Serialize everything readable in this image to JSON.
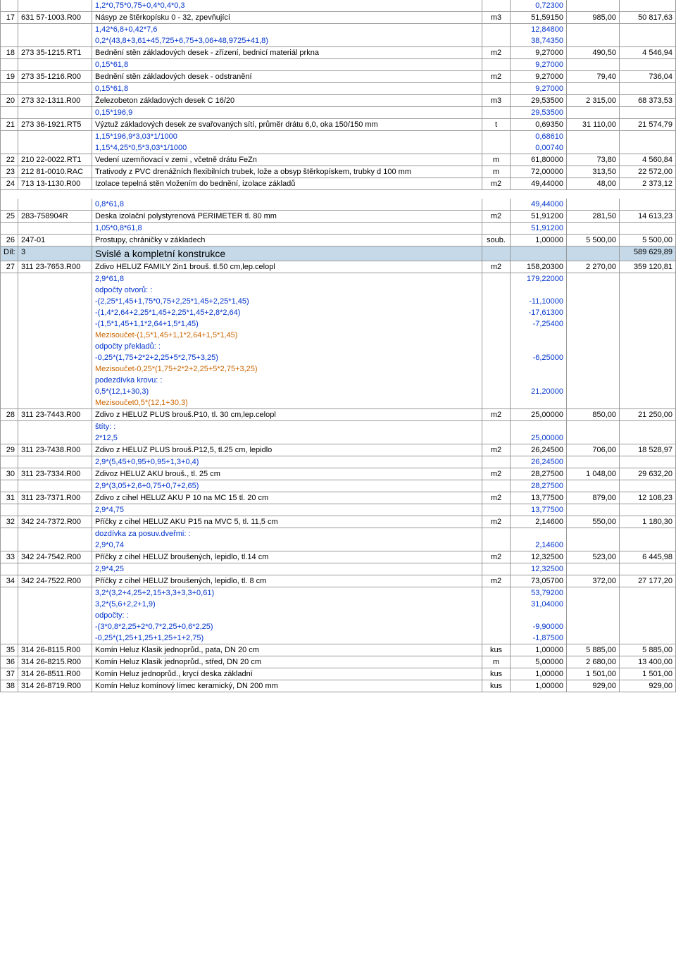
{
  "colors": {
    "blue": "#0033cc",
    "orange": "#cc6600",
    "section_bg": "#c5d9e8",
    "border": "#999999"
  },
  "font": {
    "family": "Arial",
    "size": 11
  },
  "rows": [
    {
      "type": "calc",
      "desc": "1,2*0,75*0,75+0,4*0,4*0,3",
      "qty": "0,72300"
    },
    {
      "type": "main",
      "n": "17",
      "code": "631 57-1003.R00",
      "desc": "Násyp ze štěrkopísku 0 - 32,  zpevňující",
      "unit": "m3",
      "qty": "51,59150",
      "price": "985,00",
      "total": "50 817,63"
    },
    {
      "type": "calc",
      "desc": "1,42*6,8+0,42*7,6",
      "qty": "12,84800"
    },
    {
      "type": "calc",
      "desc": "0,2*(43,8+3,61+45,725+6,75+3,06+48,9725+41,8)",
      "qty": "38,74350"
    },
    {
      "type": "main",
      "n": "18",
      "code": "273 35-1215.RT1",
      "desc": "Bednění stěn základových desek - zřízení, bednicí materiál prkna",
      "unit": "m2",
      "qty": "9,27000",
      "price": "490,50",
      "total": "4 546,94"
    },
    {
      "type": "calc",
      "desc": "0,15*61,8",
      "qty": "9,27000"
    },
    {
      "type": "main",
      "n": "19",
      "code": "273 35-1216.R00",
      "desc": "Bednění stěn základových desek - odstranění",
      "unit": "m2",
      "qty": "9,27000",
      "price": "79,40",
      "total": "736,04"
    },
    {
      "type": "calc",
      "desc": "0,15*61,8",
      "qty": "9,27000"
    },
    {
      "type": "main",
      "n": "20",
      "code": "273 32-1311.R00",
      "desc": "Železobeton základových desek C 16/20",
      "unit": "m3",
      "qty": "29,53500",
      "price": "2 315,00",
      "total": "68 373,53"
    },
    {
      "type": "calc",
      "desc": "0,15*196,9",
      "qty": "29,53500"
    },
    {
      "type": "main",
      "n": "21",
      "code": "273 36-1921.RT5",
      "desc": "Výztuž základových desek ze svařovaných sítí, průměr drátu 6,0, oka 150/150 mm",
      "unit": "t",
      "qty": "0,69350",
      "price": "31 110,00",
      "total": "21 574,79"
    },
    {
      "type": "calc",
      "desc": "1,15*196,9*3,03*1/1000",
      "qty": "0,68610"
    },
    {
      "type": "calc",
      "desc": "1,15*4,25*0,5*3,03*1/1000",
      "qty": "0,00740"
    },
    {
      "type": "main",
      "n": "22",
      "code": "210 22-0022.RT1",
      "desc": "Vedení uzemňovací v zemi , včetně drátu FeZn",
      "unit": "m",
      "qty": "61,80000",
      "price": "73,80",
      "total": "4 560,84"
    },
    {
      "type": "main",
      "n": "23",
      "code": "212 81-0010.RAC",
      "desc": "Trativody z PVC drenážních flexibilních trubek, lože a obsyp štěrkopískem, trubky d 100 mm",
      "unit": "m",
      "qty": "72,00000",
      "price": "313,50",
      "total": "22 572,00"
    },
    {
      "type": "main",
      "n": "24",
      "code": "713 13-1130.R00",
      "desc": "Izolace tepelná stěn vložením do bednění, izolace základů",
      "unit": "m2",
      "qty": "49,44000",
      "price": "48,00",
      "total": "2 373,12"
    },
    {
      "type": "spacer"
    },
    {
      "type": "calc",
      "desc": "0,8*61,8",
      "qty": "49,44000"
    },
    {
      "type": "main",
      "n": "25",
      "code": "283-758904R",
      "desc": "Deska izolační polystyrenová PERIMETER tl. 80 mm",
      "unit": "m2",
      "qty": "51,91200",
      "price": "281,50",
      "total": "14 613,23"
    },
    {
      "type": "calc",
      "desc": "1,05*0,8*61,8",
      "qty": "51,91200"
    },
    {
      "type": "main",
      "n": "26",
      "code": "247-01",
      "desc": "Prostupy, chráničky v základech",
      "unit": "soub.",
      "qty": "1,00000",
      "price": "5 500,00",
      "total": "5 500,00"
    },
    {
      "type": "section",
      "n": "Díl:",
      "code": "3",
      "desc": "Svislé a kompletní konstrukce",
      "total": "589 629,89"
    },
    {
      "type": "main",
      "n": "27",
      "code": "311 23-7653.R00",
      "desc": "Zdivo HELUZ FAMILY 2in1 brouš. tl.50 cm,lep.celopl",
      "unit": "m2",
      "qty": "158,20300",
      "price": "2 270,00",
      "total": "359 120,81"
    },
    {
      "type": "calc",
      "desc": "2,9*61,8",
      "qty": "179,22000"
    },
    {
      "type": "note",
      "desc": "odpočty otvorů: :"
    },
    {
      "type": "calc",
      "desc": "-(2,25*1,45+1,75*0,75+2,25*1,45+2,25*1,45)",
      "qty": "-11,10000"
    },
    {
      "type": "calc",
      "desc": "-(1,4*2,64+2,25*1,45+2,25*1,45+2,8*2,64)",
      "qty": "-17,61300"
    },
    {
      "type": "calc",
      "desc": "-(1,5*1,45+1,1*2,64+1,5*1,45)",
      "qty": "-7,25400"
    },
    {
      "type": "note-orange",
      "desc": "Mezisoučet-(1,5*1,45+1,1*2,64+1,5*1,45)"
    },
    {
      "type": "note",
      "desc": "odpočty překladů: :"
    },
    {
      "type": "calc",
      "desc": "-0,25*(1,75+2*2+2,25+5*2,75+3,25)",
      "qty": "-6,25000"
    },
    {
      "type": "note-orange",
      "desc": "Mezisoučet-0,25*(1,75+2*2+2,25+5*2,75+3,25)"
    },
    {
      "type": "note",
      "desc": "podezdívka krovu: :"
    },
    {
      "type": "calc",
      "desc": "0,5*(12,1+30,3)",
      "qty": "21,20000"
    },
    {
      "type": "note-orange",
      "desc": "Mezisoučet0,5*(12,1+30,3)"
    },
    {
      "type": "main",
      "n": "28",
      "code": "311 23-7443.R00",
      "desc": "Zdivo z HELUZ PLUS brouš.P10, tl. 30 cm,lep.celopl",
      "unit": "m2",
      "qty": "25,00000",
      "price": "850,00",
      "total": "21 250,00"
    },
    {
      "type": "note",
      "desc": "štíty: :"
    },
    {
      "type": "calc",
      "desc": "2*12,5",
      "qty": "25,00000"
    },
    {
      "type": "main",
      "n": "29",
      "code": "311 23-7438.R00",
      "desc": "Zdivo z HELUZ PLUS brouš.P12,5, tl.25 cm, lepidlo",
      "unit": "m2",
      "qty": "26,24500",
      "price": "706,00",
      "total": "18 528,97"
    },
    {
      "type": "calc",
      "desc": "2,9*(5,45+0,95+0,95+1,3+0,4)",
      "qty": "26,24500"
    },
    {
      "type": "main",
      "n": "30",
      "code": "311 23-7334.R00",
      "desc": "Zdivoz HELUZ AKU brouš., tl. 25 cm",
      "unit": "m2",
      "qty": "28,27500",
      "price": "1 048,00",
      "total": "29 632,20"
    },
    {
      "type": "calc",
      "desc": "2,9*(3,05+2,6+0,75+0,7+2,65)",
      "qty": "28,27500"
    },
    {
      "type": "main",
      "n": "31",
      "code": "311 23-7371.R00",
      "desc": "Zdivo z cihel HELUZ AKU P 10 na MC 15 tl. 20 cm",
      "unit": "m2",
      "qty": "13,77500",
      "price": "879,00",
      "total": "12 108,23"
    },
    {
      "type": "calc",
      "desc": "2,9*4,75",
      "qty": "13,77500"
    },
    {
      "type": "main",
      "n": "32",
      "code": "342 24-7372.R00",
      "desc": "Příčky z cihel HELUZ AKU P15 na MVC 5, tl. 11,5 cm",
      "unit": "m2",
      "qty": "2,14600",
      "price": "550,00",
      "total": "1 180,30"
    },
    {
      "type": "note",
      "desc": "dozdívka za posuv.dveřmi: :"
    },
    {
      "type": "calc",
      "desc": "2,9*0,74",
      "qty": "2,14600"
    },
    {
      "type": "main",
      "n": "33",
      "code": "342 24-7542.R00",
      "desc": "Příčky z cihel HELUZ broušených, lepidlo, tl.14 cm",
      "unit": "m2",
      "qty": "12,32500",
      "price": "523,00",
      "total": "6 445,98"
    },
    {
      "type": "calc",
      "desc": "2,9*4,25",
      "qty": "12,32500"
    },
    {
      "type": "main",
      "n": "34",
      "code": "342 24-7522.R00",
      "desc": "Příčky z cihel HELUZ broušených, lepidlo, tl. 8 cm",
      "unit": "m2",
      "qty": "73,05700",
      "price": "372,00",
      "total": "27 177,20"
    },
    {
      "type": "calc",
      "desc": "3,2*(3,2+4,25+2,15+3,3+3,3+0,61)",
      "qty": "53,79200"
    },
    {
      "type": "calc",
      "desc": "3,2*(5,6+2,2+1,9)",
      "qty": "31,04000"
    },
    {
      "type": "note",
      "desc": "odpočty: :"
    },
    {
      "type": "calc",
      "desc": "-(3*0,8*2,25+2*0,7*2,25+0,6*2,25)",
      "qty": "-9,90000"
    },
    {
      "type": "calc",
      "desc": "-0,25*(1,25+1,25+1,25+1+2,75)",
      "qty": "-1,87500"
    },
    {
      "type": "main",
      "n": "35",
      "code": "314 26-8115.R00",
      "desc": "Komín Heluz Klasik jednoprůd., pata, DN 20 cm",
      "unit": "kus",
      "qty": "1,00000",
      "price": "5 885,00",
      "total": "5 885,00"
    },
    {
      "type": "main",
      "n": "36",
      "code": "314 26-8215.R00",
      "desc": "Komín Heluz Klasik jednoprůd., střed, DN 20 cm",
      "unit": "m",
      "qty": "5,00000",
      "price": "2 680,00",
      "total": "13 400,00"
    },
    {
      "type": "main",
      "n": "37",
      "code": "314 26-8511.R00",
      "desc": "Komín Heluz jednoprůd., krycí deska základní",
      "unit": "kus",
      "qty": "1,00000",
      "price": "1 501,00",
      "total": "1 501,00"
    },
    {
      "type": "main",
      "n": "38",
      "code": "314 26-8719.R00",
      "desc": "Komín Heluz komínový límec keramický, DN 200 mm",
      "unit": "kus",
      "qty": "1,00000",
      "price": "929,00",
      "total": "929,00"
    }
  ]
}
